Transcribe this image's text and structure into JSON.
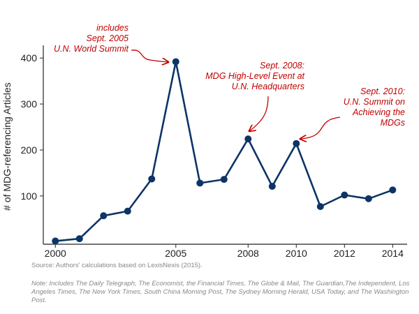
{
  "chart_data": {
    "type": "line",
    "x": [
      2000,
      2001,
      2002,
      2003,
      2004,
      2005,
      2006,
      2007,
      2008,
      2009,
      2010,
      2011,
      2012,
      2013,
      2014
    ],
    "values": [
      2,
      7,
      57,
      67,
      137,
      392,
      128,
      136,
      224,
      121,
      214,
      77,
      102,
      94,
      113
    ],
    "xticks": [
      2000,
      2005,
      2008,
      2010,
      2012,
      2014
    ],
    "yticks": [
      100,
      200,
      300,
      400
    ],
    "xlim": [
      1999.5,
      2014.6
    ],
    "ylim": [
      -5,
      420
    ],
    "ylabel": "# of MDG-referencing Articles",
    "xlabel": "",
    "line_color": "#0d3466",
    "annotation_color": "#c00000",
    "annotations": [
      {
        "lines": [
          "includes",
          "Sept. 2005",
          "U.N. World Summit"
        ],
        "target_year": 2005
      },
      {
        "lines": [
          "Sept. 2008:",
          "MDG High-Level Event at",
          "U.N. Headquarters"
        ],
        "target_year": 2008
      },
      {
        "lines": [
          "Sept. 2010:",
          "U.N. Summit on",
          "Achieving the",
          "MDGs"
        ],
        "target_year": 2010
      }
    ]
  },
  "source": "Source: Authors' calculations based on LexisNexis (2015).",
  "note": "Note: Includes The Daily Telegraph, The Economist, the Financial Times, The Globe & Mail, The Guardian,The Independent, Los Angeles Times, The New York Times, South China Morning Post, The Sydney Morning Herald, USA Today, and The Washington Post."
}
